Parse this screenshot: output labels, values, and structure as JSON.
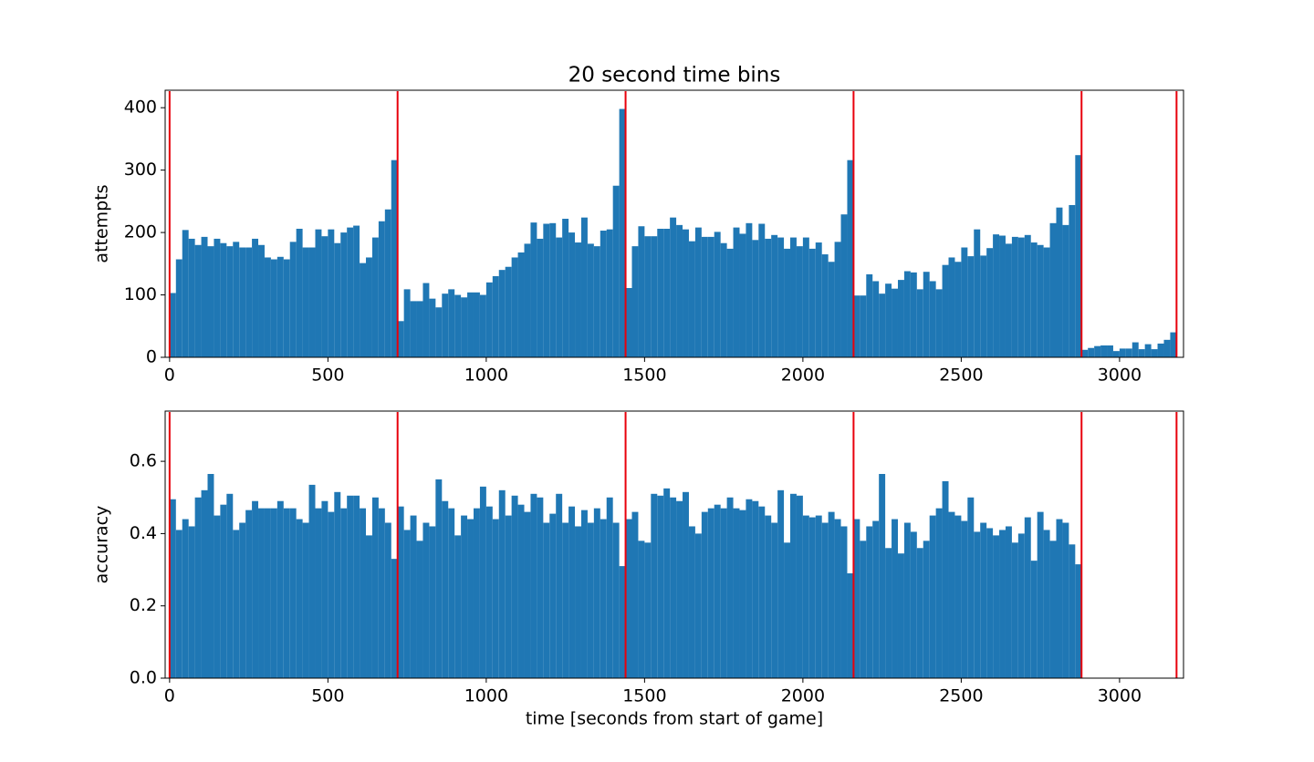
{
  "chart_data": [
    {
      "type": "histogram",
      "title": "20 second time bins",
      "ylabel": "attempts",
      "color": "#1f77b4",
      "bins": [
        0,
        20,
        40,
        60,
        80,
        100,
        120,
        140,
        160,
        180,
        200,
        220,
        240,
        260,
        280,
        300,
        320,
        340,
        360,
        380,
        400,
        420,
        440,
        460,
        480,
        500,
        520,
        540,
        560,
        580,
        600,
        620,
        640,
        660,
        680,
        700,
        720,
        740,
        760,
        780,
        800,
        820,
        840,
        860,
        880,
        900,
        920,
        940,
        960,
        980,
        1000,
        1020,
        1040,
        1060,
        1080,
        1100,
        1120,
        1140,
        1160,
        1180,
        1200,
        1220,
        1240,
        1260,
        1280,
        1300,
        1320,
        1340,
        1360,
        1380,
        1400,
        1420,
        1440,
        1460,
        1480,
        1500,
        1520,
        1540,
        1560,
        1580,
        1600,
        1620,
        1640,
        1660,
        1680,
        1700,
        1720,
        1740,
        1760,
        1780,
        1800,
        1820,
        1840,
        1860,
        1880,
        1900,
        1920,
        1940,
        1960,
        1980,
        2000,
        2020,
        2040,
        2060,
        2080,
        2100,
        2120,
        2140,
        2160,
        2180,
        2200,
        2220,
        2240,
        2260,
        2280,
        2300,
        2320,
        2340,
        2360,
        2380,
        2400,
        2420,
        2440,
        2460,
        2480,
        2500,
        2520,
        2540,
        2560,
        2580,
        2600,
        2620,
        2640,
        2660,
        2680,
        2700,
        2720,
        2740,
        2760,
        2780,
        2800,
        2820,
        2840,
        2860,
        2880,
        2900,
        2920,
        2940,
        2960,
        2980,
        3000,
        3020,
        3040,
        3060,
        3080,
        3100,
        3120,
        3140,
        3160,
        3180
      ],
      "values": [
        103,
        157,
        204,
        190,
        180,
        193,
        178,
        190,
        183,
        178,
        185,
        176,
        176,
        190,
        180,
        160,
        157,
        161,
        157,
        185,
        206,
        176,
        176,
        205,
        194,
        205,
        183,
        200,
        208,
        211,
        151,
        160,
        192,
        218,
        237,
        316,
        58,
        109,
        90,
        90,
        119,
        94,
        80,
        102,
        109,
        100,
        96,
        104,
        104,
        100,
        120,
        130,
        140,
        145,
        160,
        168,
        182,
        216,
        190,
        214,
        215,
        192,
        222,
        200,
        184,
        224,
        182,
        178,
        203,
        205,
        275,
        398,
        111,
        178,
        210,
        194,
        194,
        206,
        206,
        224,
        212,
        205,
        186,
        208,
        193,
        193,
        201,
        183,
        174,
        208,
        198,
        215,
        188,
        214,
        190,
        196,
        192,
        174,
        192,
        178,
        192,
        174,
        184,
        165,
        153,
        185,
        229,
        316,
        99,
        99,
        133,
        122,
        102,
        118,
        110,
        124,
        138,
        136,
        109,
        137,
        122,
        109,
        148,
        160,
        153,
        176,
        162,
        205,
        163,
        175,
        197,
        195,
        182,
        193,
        192,
        196,
        184,
        180,
        176,
        215,
        240,
        212,
        244,
        324,
        12,
        15,
        18,
        19,
        19,
        10,
        14,
        14,
        24,
        13,
        21,
        13,
        22,
        28,
        40
      ],
      "xlim": [
        -14,
        3202
      ],
      "ylim": [
        0,
        428
      ],
      "xticks": [
        0,
        500,
        1000,
        1500,
        2000,
        2500,
        3000
      ],
      "yticks": [
        0,
        100,
        200,
        300,
        400
      ],
      "vlines": [
        0,
        720,
        1440,
        2160,
        2880,
        3180
      ],
      "vline_color": "#e8000b"
    },
    {
      "type": "histogram",
      "ylabel": "accuracy",
      "xlabel": "time [seconds from start of game]",
      "color": "#1f77b4",
      "bins": [
        0,
        20,
        40,
        60,
        80,
        100,
        120,
        140,
        160,
        180,
        200,
        220,
        240,
        260,
        280,
        300,
        320,
        340,
        360,
        380,
        400,
        420,
        440,
        460,
        480,
        500,
        520,
        540,
        560,
        580,
        600,
        620,
        640,
        660,
        680,
        700,
        720,
        740,
        760,
        780,
        800,
        820,
        840,
        860,
        880,
        900,
        920,
        940,
        960,
        980,
        1000,
        1020,
        1040,
        1060,
        1080,
        1100,
        1120,
        1140,
        1160,
        1180,
        1200,
        1220,
        1240,
        1260,
        1280,
        1300,
        1320,
        1340,
        1360,
        1380,
        1400,
        1420,
        1440,
        1460,
        1480,
        1500,
        1520,
        1540,
        1560,
        1580,
        1600,
        1620,
        1640,
        1660,
        1680,
        1700,
        1720,
        1740,
        1760,
        1780,
        1800,
        1820,
        1840,
        1860,
        1880,
        1900,
        1920,
        1940,
        1960,
        1980,
        2000,
        2020,
        2040,
        2060,
        2080,
        2100,
        2120,
        2140,
        2160,
        2180,
        2200,
        2220,
        2240,
        2260,
        2280,
        2300,
        2320,
        2340,
        2360,
        2380,
        2400,
        2420,
        2440,
        2460,
        2480,
        2500,
        2520,
        2540,
        2560,
        2580,
        2600,
        2620,
        2640,
        2660,
        2680,
        2700,
        2720,
        2740,
        2760,
        2780,
        2800,
        2820,
        2840,
        2860,
        2880,
        2900,
        2920,
        2940,
        2960,
        2980,
        3000,
        3020,
        3040,
        3060,
        3080,
        3100,
        3120,
        3140,
        3160,
        3180
      ],
      "values": [
        0.495,
        0.41,
        0.44,
        0.42,
        0.5,
        0.52,
        0.565,
        0.45,
        0.48,
        0.51,
        0.41,
        0.43,
        0.465,
        0.49,
        0.47,
        0.47,
        0.47,
        0.49,
        0.47,
        0.47,
        0.44,
        0.43,
        0.535,
        0.47,
        0.49,
        0.46,
        0.515,
        0.47,
        0.505,
        0.505,
        0.47,
        0.395,
        0.5,
        0.47,
        0.43,
        0.33,
        0.475,
        0.41,
        0.45,
        0.38,
        0.43,
        0.42,
        0.55,
        0.49,
        0.47,
        0.395,
        0.45,
        0.44,
        0.47,
        0.53,
        0.475,
        0.44,
        0.52,
        0.45,
        0.505,
        0.48,
        0.46,
        0.51,
        0.5,
        0.43,
        0.455,
        0.51,
        0.43,
        0.475,
        0.42,
        0.465,
        0.43,
        0.47,
        0.44,
        0.5,
        0.43,
        0.31,
        0.44,
        0.46,
        0.38,
        0.375,
        0.51,
        0.505,
        0.525,
        0.5,
        0.49,
        0.515,
        0.42,
        0.4,
        0.46,
        0.47,
        0.48,
        0.47,
        0.5,
        0.47,
        0.465,
        0.495,
        0.49,
        0.475,
        0.45,
        0.43,
        0.52,
        0.375,
        0.51,
        0.505,
        0.45,
        0.445,
        0.45,
        0.43,
        0.46,
        0.44,
        0.42,
        0.29,
        0.44,
        0.38,
        0.42,
        0.435,
        0.565,
        0.36,
        0.44,
        0.345,
        0.43,
        0.405,
        0.36,
        0.38,
        0.45,
        0.47,
        0.545,
        0.46,
        0.45,
        0.435,
        0.5,
        0.405,
        0.43,
        0.415,
        0.395,
        0.41,
        0.42,
        0.375,
        0.4,
        0.445,
        0.325,
        0.46,
        0.41,
        0.38,
        0.44,
        0.43,
        0.37,
        0.315,
        null,
        null,
        null,
        null,
        null,
        null,
        null,
        null,
        null,
        null,
        null,
        null,
        null,
        null,
        null
      ],
      "xlim": [
        -14,
        3202
      ],
      "ylim": [
        0,
        0.739
      ],
      "xticks": [
        0,
        500,
        1000,
        1500,
        2000,
        2500,
        3000
      ],
      "yticks": [
        {
          "value": 0,
          "label": "0.0"
        },
        0.2,
        0.4,
        0.6
      ],
      "vlines": [
        0,
        720,
        1440,
        2160,
        2880,
        3180
      ],
      "vline_color": "#e8000b"
    }
  ]
}
